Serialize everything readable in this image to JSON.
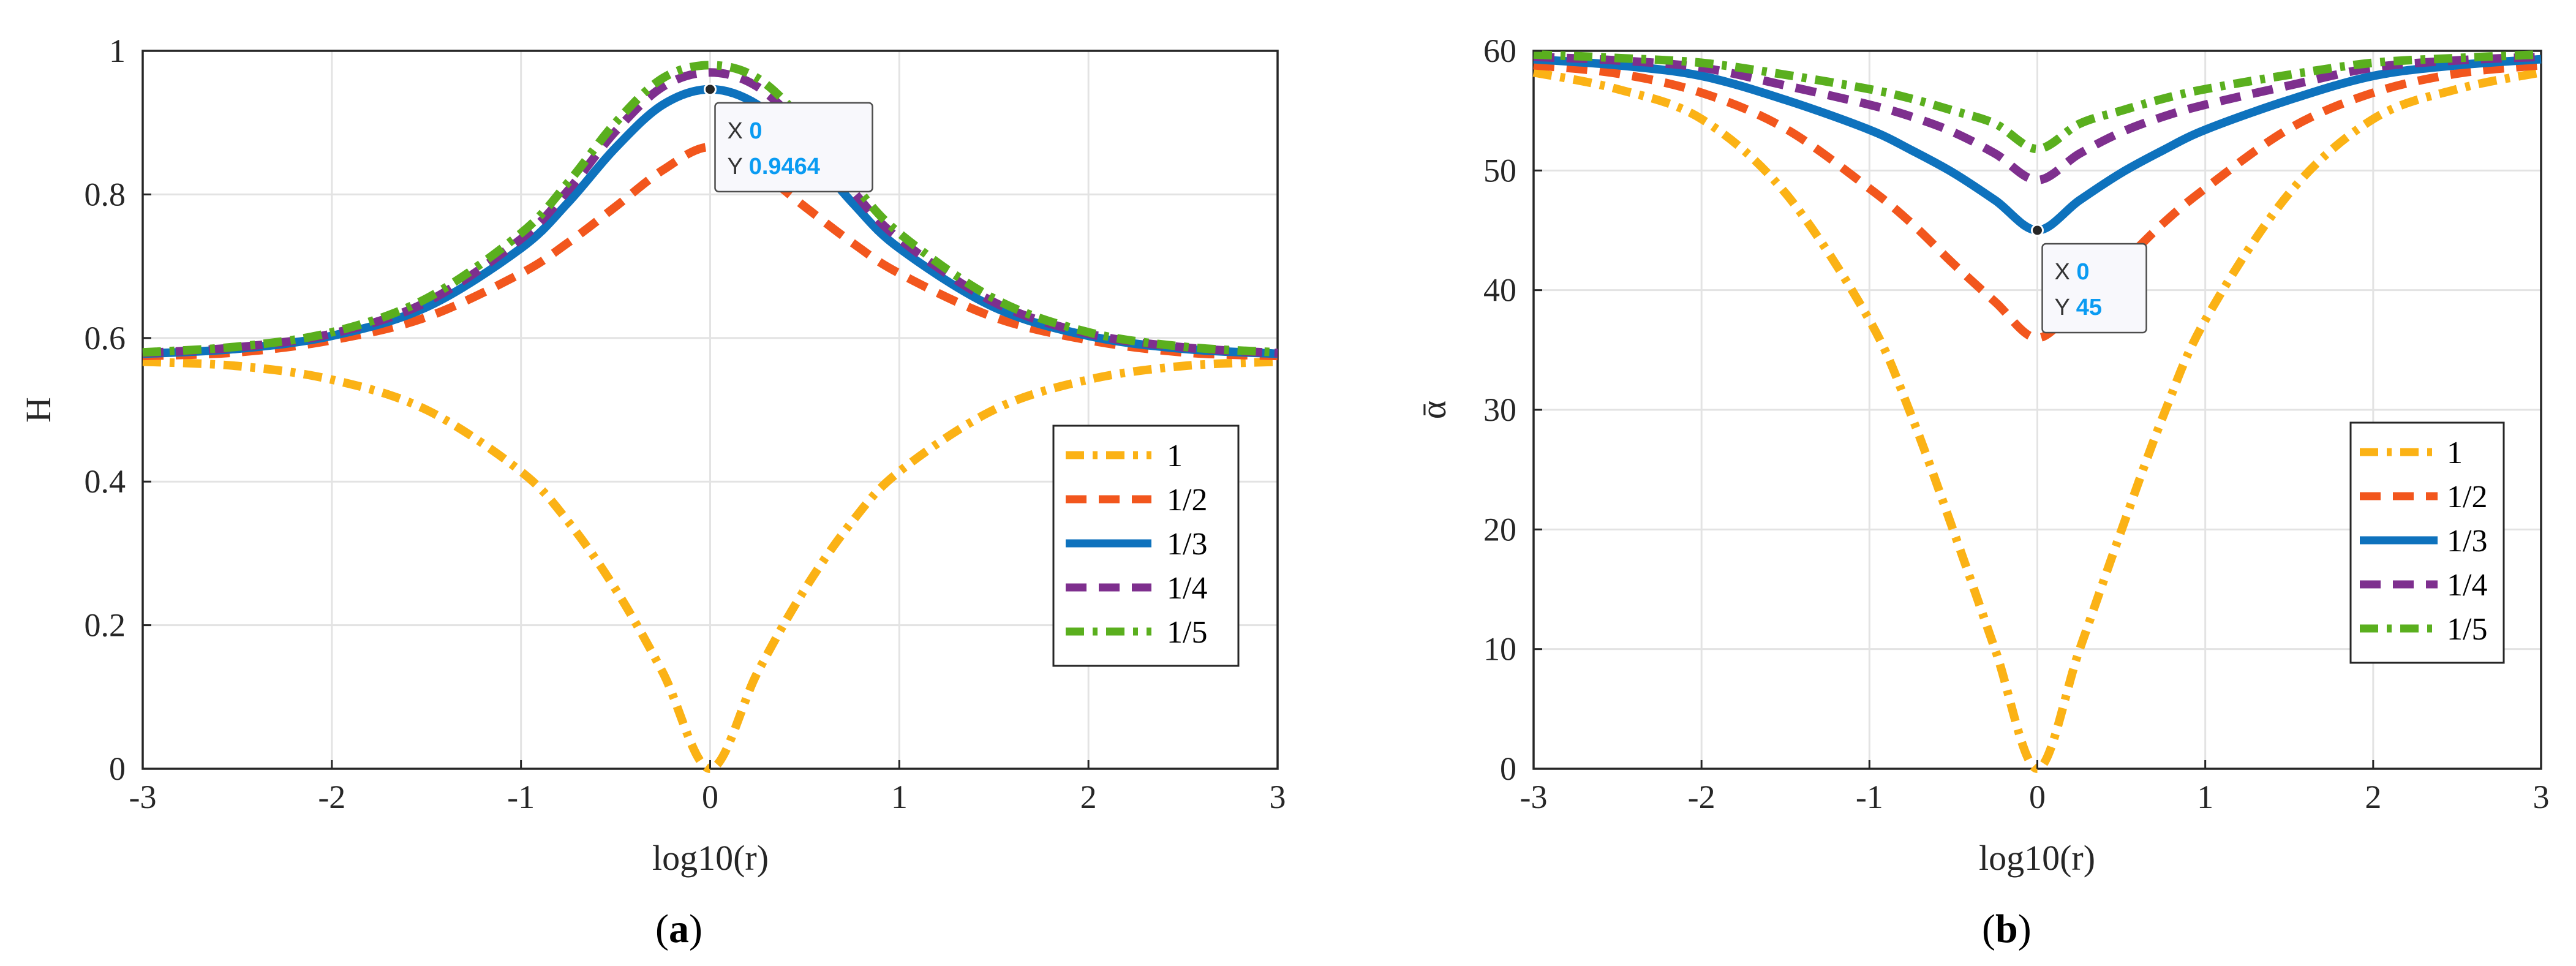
{
  "chart_data": [
    {
      "type": "line",
      "id": "a",
      "caption": "(a)",
      "caption_letter": "a",
      "xlabel": "log10(r)",
      "ylabel": "H",
      "xlim": [
        -3,
        3
      ],
      "ylim": [
        0,
        1
      ],
      "xticks": [
        -3,
        -2,
        -1,
        0,
        1,
        2,
        3
      ],
      "xtick_labels": [
        "-3",
        "-2",
        "-1",
        "0",
        "1",
        "2",
        "3"
      ],
      "yticks": [
        0,
        0.2,
        0.4,
        0.6,
        0.8,
        1
      ],
      "ytick_labels": [
        "0",
        "0.2",
        "0.4",
        "0.6",
        "0.8",
        "1"
      ],
      "grid": true,
      "legend_position": "right-middle",
      "x": [
        -3,
        -2.5,
        -2,
        -1.5,
        -1,
        -0.75,
        -0.5,
        -0.25,
        0,
        0.25,
        0.5,
        0.75,
        1,
        1.5,
        2,
        2.5,
        3
      ],
      "series": [
        {
          "name": "1",
          "values": [
            0.567,
            0.561,
            0.542,
            0.5,
            0.414,
            0.344,
            0.25,
            0.134,
            0.0,
            0.134,
            0.25,
            0.344,
            0.414,
            0.5,
            0.542,
            0.561,
            0.567
          ]
        },
        {
          "name": "1/2",
          "values": [
            0.575,
            0.58,
            0.597,
            0.629,
            0.69,
            0.733,
            0.783,
            0.834,
            0.866,
            0.834,
            0.783,
            0.733,
            0.69,
            0.629,
            0.597,
            0.58,
            0.575
          ]
        },
        {
          "name": "1/3",
          "values": [
            0.578,
            0.585,
            0.603,
            0.643,
            0.725,
            0.789,
            0.865,
            0.925,
            0.9464,
            0.925,
            0.865,
            0.789,
            0.725,
            0.643,
            0.603,
            0.585,
            0.578
          ]
        },
        {
          "name": "1/4",
          "values": [
            0.579,
            0.587,
            0.606,
            0.65,
            0.738,
            0.806,
            0.888,
            0.95,
            0.97,
            0.95,
            0.888,
            0.806,
            0.738,
            0.65,
            0.606,
            0.587,
            0.579
          ]
        },
        {
          "name": "1/5",
          "values": [
            0.58,
            0.588,
            0.608,
            0.655,
            0.746,
            0.817,
            0.9,
            0.962,
            0.98,
            0.962,
            0.9,
            0.817,
            0.746,
            0.655,
            0.608,
            0.588,
            0.58
          ]
        }
      ],
      "datatip": {
        "series": "1/3",
        "x": 0,
        "y": 0.9464,
        "x_label": "X",
        "y_label": "Y",
        "x_text": "0",
        "y_text": "0.9464"
      }
    },
    {
      "type": "line",
      "id": "b",
      "caption": "(b)",
      "caption_letter": "b",
      "xlabel": "log10(r)",
      "ylabel": "ᾱ",
      "xlim": [
        -3,
        3
      ],
      "ylim": [
        0,
        60
      ],
      "xticks": [
        -3,
        -2,
        -1,
        0,
        1,
        2,
        3
      ],
      "xtick_labels": [
        "-3",
        "-2",
        "-1",
        "0",
        "1",
        "2",
        "3"
      ],
      "yticks": [
        0,
        10,
        20,
        30,
        40,
        50,
        60
      ],
      "ytick_labels": [
        "0",
        "10",
        "20",
        "30",
        "40",
        "50",
        "60"
      ],
      "grid": true,
      "legend_position": "right-middle",
      "x": [
        -3,
        -2.5,
        -2,
        -1.5,
        -1,
        -0.75,
        -0.5,
        -0.25,
        0,
        0.25,
        0.5,
        0.75,
        1,
        1.5,
        2,
        2.5,
        3
      ],
      "series": [
        {
          "name": "1",
          "values": [
            58.2,
            56.8,
            54.3,
            48.1,
            37.5,
            29.5,
            19.9,
            9.9,
            0.0,
            9.9,
            19.9,
            29.5,
            37.5,
            48.1,
            54.3,
            56.8,
            58.2
          ]
        },
        {
          "name": "1/2",
          "values": [
            58.8,
            58.1,
            56.5,
            53.5,
            48.5,
            45.6,
            42.2,
            39.0,
            36.0,
            39.0,
            42.2,
            45.6,
            48.5,
            53.5,
            56.5,
            58.1,
            58.8
          ]
        },
        {
          "name": "1/3",
          "values": [
            59.3,
            58.8,
            57.9,
            55.9,
            53.4,
            51.7,
            49.8,
            47.5,
            45.0,
            47.5,
            49.8,
            51.7,
            53.4,
            55.9,
            57.9,
            58.8,
            59.3
          ]
        },
        {
          "name": "1/4",
          "values": [
            59.5,
            59.2,
            58.6,
            57.1,
            55.5,
            54.5,
            53.2,
            51.4,
            49.2,
            51.4,
            53.2,
            54.5,
            55.5,
            57.1,
            58.6,
            59.2,
            59.5
          ]
        },
        {
          "name": "1/5",
          "values": [
            59.7,
            59.4,
            59.0,
            58.0,
            56.8,
            56.0,
            55.0,
            53.9,
            51.8,
            53.9,
            55.0,
            56.0,
            56.8,
            58.0,
            59.0,
            59.4,
            59.7
          ]
        }
      ],
      "datatip": {
        "series": "1/3",
        "x": 0,
        "y": 45,
        "x_label": "X",
        "y_label": "Y",
        "x_text": "0",
        "y_text": "45"
      }
    }
  ],
  "series_styles": [
    {
      "name": "1",
      "color": "#FBB215",
      "dash": "dashdot"
    },
    {
      "name": "1/2",
      "color": "#F2561D",
      "dash": "dashed"
    },
    {
      "name": "1/3",
      "color": "#0E72BD",
      "dash": "solid"
    },
    {
      "name": "1/4",
      "color": "#7E2F8E",
      "dash": "dashed"
    },
    {
      "name": "1/5",
      "color": "#5AAF1E",
      "dash": "dashdot"
    }
  ]
}
